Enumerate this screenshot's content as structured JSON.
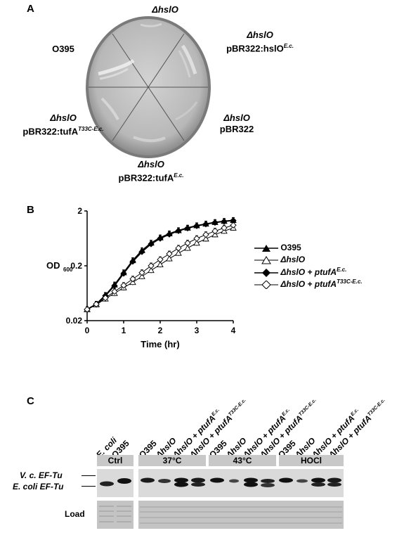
{
  "panel_a": {
    "letter": "A",
    "labels": [
      {
        "id": "top",
        "line1": "ΔhslO",
        "line2": "",
        "sup": ""
      },
      {
        "id": "upper-right",
        "line1": "ΔhslO",
        "line2": "pBR322:hslO",
        "sup": "E.c."
      },
      {
        "id": "left",
        "line1": "O395",
        "line2": "",
        "sup": ""
      },
      {
        "id": "right",
        "line1": "ΔhslO",
        "line2": "pBR322",
        "sup": ""
      },
      {
        "id": "lower-left",
        "line1": "ΔhslO",
        "line2": "pBR322:tufA",
        "sup": "T33C-E.c."
      },
      {
        "id": "bottom",
        "line1": "ΔhslO",
        "line2": "pBR322:tufA",
        "sup": "E.c."
      }
    ]
  },
  "panel_b": {
    "letter": "B",
    "chart_data": {
      "type": "line",
      "xlabel": "Time (hr)",
      "ylabel": "OD",
      "ylabel_sub": "600",
      "x_ticks": [
        "0",
        "1",
        "2",
        "3",
        "4"
      ],
      "y_ticks": [
        "0.02",
        "0.2",
        "2"
      ],
      "xlim": [
        0,
        4
      ],
      "ylim": [
        0.02,
        2
      ],
      "yscale": "log",
      "legend_position": "right",
      "x": [
        0,
        0.25,
        0.5,
        0.75,
        1.0,
        1.25,
        1.5,
        1.75,
        2.0,
        2.25,
        2.5,
        2.75,
        3.0,
        3.25,
        3.5,
        3.75,
        4.0
      ],
      "series": [
        {
          "name": "O395",
          "marker": "triangle",
          "filled": true,
          "values": [
            0.032,
            0.04,
            0.058,
            0.09,
            0.15,
            0.25,
            0.38,
            0.52,
            0.65,
            0.77,
            0.88,
            0.98,
            1.08,
            1.16,
            1.24,
            1.3,
            1.35
          ]
        },
        {
          "name": "ΔhslO",
          "marker": "triangle",
          "filled": false,
          "values": [
            0.032,
            0.039,
            0.05,
            0.063,
            0.08,
            0.1,
            0.128,
            0.165,
            0.21,
            0.27,
            0.34,
            0.42,
            0.52,
            0.62,
            0.74,
            0.86,
            0.98
          ]
        },
        {
          "name": "ΔhslO + ptufA",
          "name_sup": "E.c.",
          "marker": "diamond",
          "filled": true,
          "values": [
            0.032,
            0.04,
            0.057,
            0.087,
            0.145,
            0.24,
            0.36,
            0.5,
            0.63,
            0.75,
            0.87,
            0.97,
            1.07,
            1.15,
            1.23,
            1.29,
            1.34
          ]
        },
        {
          "name": "ΔhslO + ptufA",
          "name_sup": "T33C-E.c.",
          "marker": "diamond",
          "filled": false,
          "values": [
            0.032,
            0.04,
            0.052,
            0.068,
            0.088,
            0.115,
            0.15,
            0.2,
            0.26,
            0.33,
            0.42,
            0.52,
            0.63,
            0.74,
            0.86,
            0.98,
            1.1
          ]
        }
      ]
    }
  },
  "panel_c": {
    "letter": "C",
    "ctrl_lanes": [
      {
        "text": "E. coli",
        "sup": ""
      },
      {
        "text": "O395",
        "sup": ""
      }
    ],
    "lanes": [
      {
        "text": "O395",
        "sup": ""
      },
      {
        "text": "ΔhslO",
        "sup": ""
      },
      {
        "text": "ΔhslO + ptufA",
        "sup": "E.c."
      },
      {
        "text": "ΔhslO + ptufA",
        "sup": "T33C-E.c."
      }
    ],
    "ctrl_label": "Ctrl",
    "conditions": [
      "37°C",
      "43°C",
      "HOCl"
    ],
    "band_labels": {
      "upper": "V. c. EF-Tu",
      "lower": "E. coli EF-Tu"
    },
    "load_label": "Load"
  }
}
